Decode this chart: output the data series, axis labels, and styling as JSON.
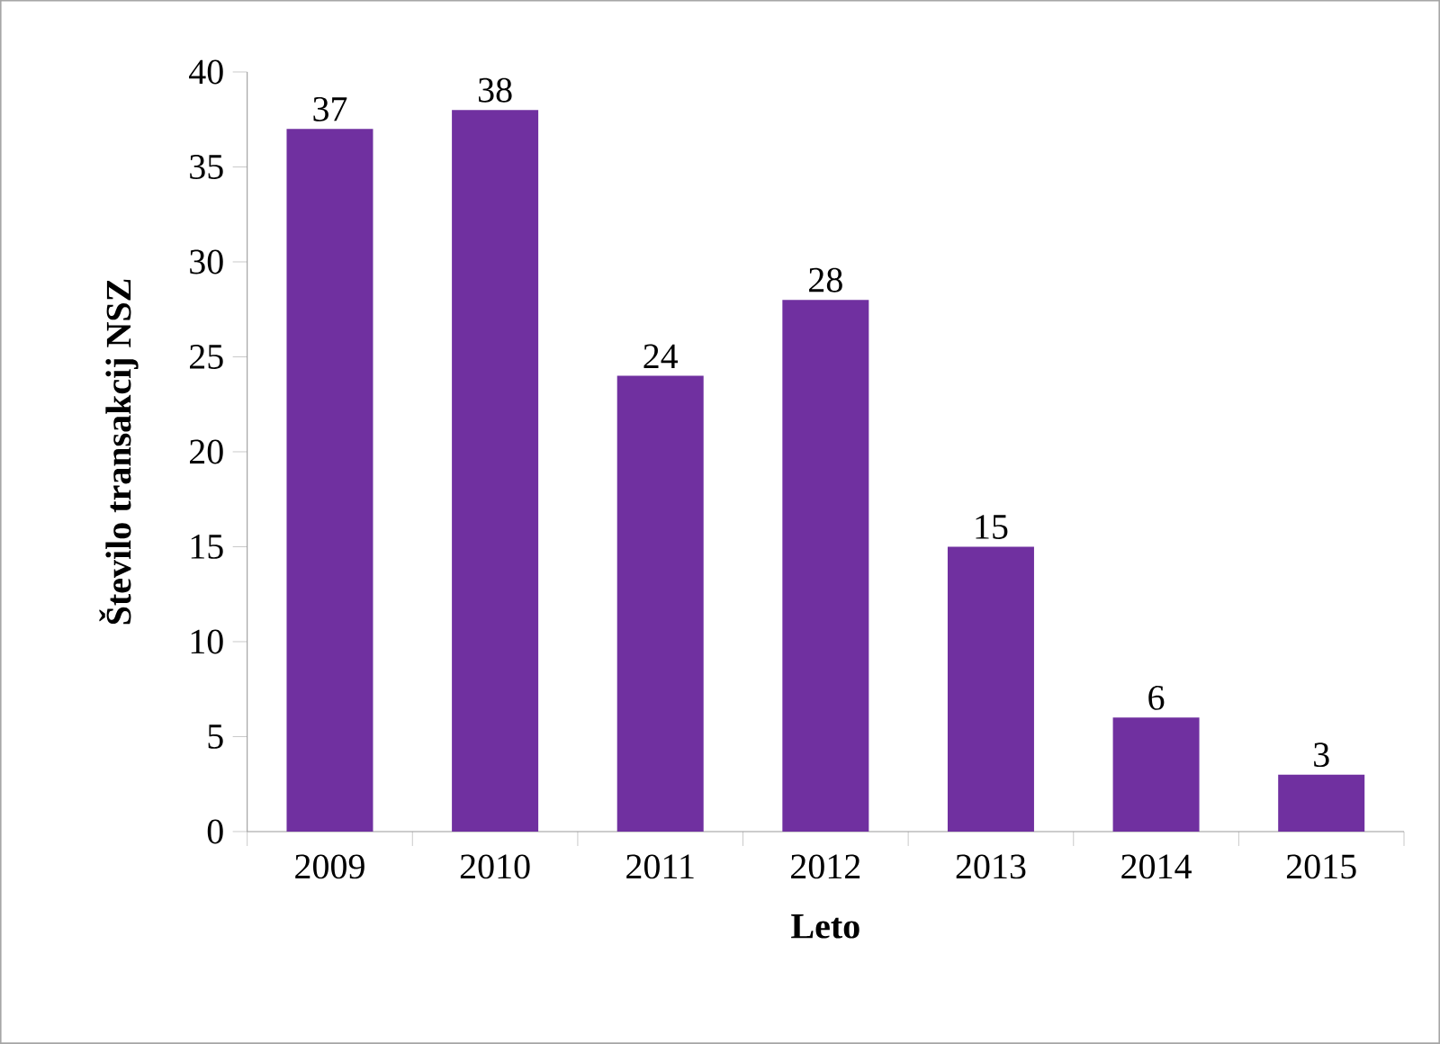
{
  "chart_data": {
    "type": "bar",
    "xlabel": "Leto",
    "ylabel": "Število transakcij NSZ",
    "categories": [
      "2009",
      "2010",
      "2011",
      "2012",
      "2013",
      "2014",
      "2015"
    ],
    "values": [
      37,
      38,
      24,
      28,
      15,
      6,
      3
    ],
    "value_labels": [
      "37",
      "38",
      "24",
      "28",
      "15",
      "6",
      "3"
    ],
    "color": "#7030a0",
    "ylim": [
      0,
      40
    ],
    "yticks": [
      0,
      5,
      10,
      15,
      20,
      25,
      30,
      35,
      40
    ],
    "grid": false
  }
}
